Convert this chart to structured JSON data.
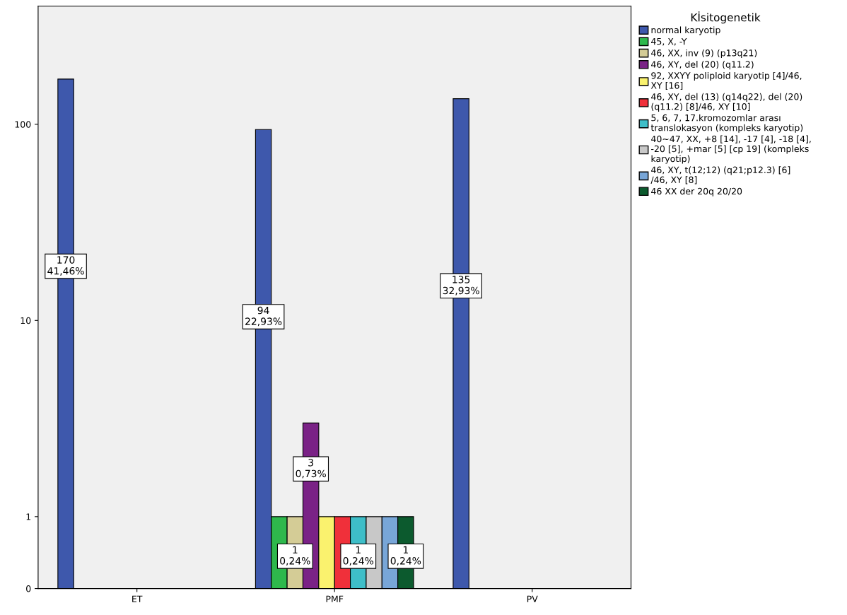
{
  "chart_data": {
    "type": "bar",
    "categories": [
      "ET",
      "PMF",
      "PV"
    ],
    "legend_title": "Kİsitogenetik",
    "legend": "right",
    "log": true,
    "grid": false,
    "ylim": [
      0,
      400
    ],
    "yticks": [
      0,
      1,
      10,
      100
    ],
    "series": [
      {
        "name": "normal karyotip",
        "color": "#3e58ac",
        "values": [
          170,
          94,
          135
        ],
        "value_labels": [
          "170\n41,46%",
          "94\n22,93%",
          "135\n32,93%"
        ]
      },
      {
        "name": "45, X, -Y",
        "color": "#2eb84c",
        "values": [
          null,
          1,
          null
        ]
      },
      {
        "name": "46, XX, inv (9) (p13q21)",
        "color": "#d4cc96",
        "values": [
          null,
          1,
          null
        ],
        "value_labels": [
          null,
          "1\n0,24%",
          null
        ]
      },
      {
        "name": "46, XY, del (20) (q11.2)",
        "color": "#7a2286",
        "values": [
          null,
          3,
          null
        ],
        "value_labels": [
          null,
          "3\n0,73%",
          null
        ]
      },
      {
        "name": "92, XXYY poliploid karyotip [4]/46,\nXY [16]",
        "color": "#faf26e",
        "values": [
          null,
          1,
          null
        ]
      },
      {
        "name": "46, XY, del (13) (q14q22), del (20)\n(q11.2) [8]/46, XY [10]",
        "color": "#f0303a",
        "values": [
          null,
          1,
          null
        ]
      },
      {
        "name": "5, 6, 7, 17.kromozomlar arası\ntranslokasyon (kompleks karyotip)",
        "color": "#3ebec8",
        "values": [
          null,
          1,
          null
        ],
        "value_labels": [
          null,
          "1\n0,24%",
          null
        ]
      },
      {
        "name": "40~47, XX, +8 [14], -17 [4], -18 [4],\n-20 [5], +mar [5] [cp 19] (kompleks\nkaryotip)",
        "color": "#c8c8c8",
        "values": [
          null,
          1,
          null
        ]
      },
      {
        "name": "46, XY, t(12;12) (q21;p12.3) [6]\n/46, XY [8]",
        "color": "#78a6d8",
        "values": [
          null,
          1,
          null
        ]
      },
      {
        "name": "46 XX der 20q 20/20",
        "color": "#0c5a2e",
        "values": [
          null,
          1,
          null
        ],
        "value_labels": [
          null,
          "1\n0,24%",
          null
        ]
      }
    ]
  }
}
